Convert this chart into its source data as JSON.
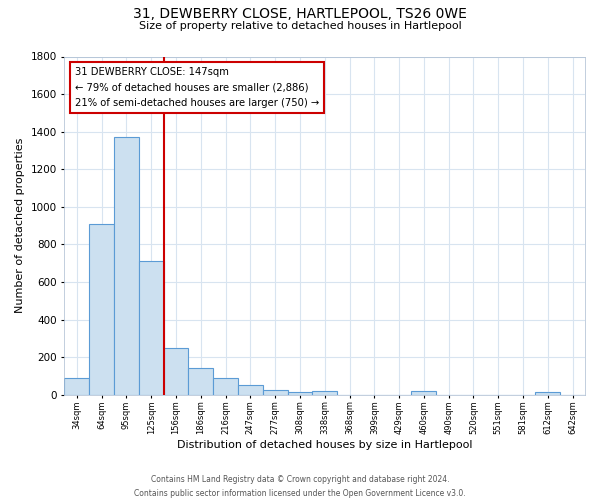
{
  "title": "31, DEWBERRY CLOSE, HARTLEPOOL, TS26 0WE",
  "subtitle": "Size of property relative to detached houses in Hartlepool",
  "xlabel": "Distribution of detached houses by size in Hartlepool",
  "ylabel": "Number of detached properties",
  "bar_labels": [
    "34sqm",
    "64sqm",
    "95sqm",
    "125sqm",
    "156sqm",
    "186sqm",
    "216sqm",
    "247sqm",
    "277sqm",
    "308sqm",
    "338sqm",
    "368sqm",
    "399sqm",
    "429sqm",
    "460sqm",
    "490sqm",
    "520sqm",
    "551sqm",
    "581sqm",
    "612sqm",
    "642sqm"
  ],
  "bar_heights": [
    90,
    910,
    1370,
    710,
    250,
    145,
    90,
    55,
    25,
    15,
    20,
    0,
    0,
    0,
    20,
    0,
    0,
    0,
    0,
    15,
    0
  ],
  "bar_color": "#cce0f0",
  "bar_edge_color": "#5b9bd5",
  "ylim": [
    0,
    1800
  ],
  "yticks": [
    0,
    200,
    400,
    600,
    800,
    1000,
    1200,
    1400,
    1600,
    1800
  ],
  "property_line_color": "#cc0000",
  "annotation_text": "31 DEWBERRY CLOSE: 147sqm\n← 79% of detached houses are smaller (2,886)\n21% of semi-detached houses are larger (750) →",
  "annotation_box_color": "#ffffff",
  "annotation_box_edge_color": "#cc0000",
  "footer_line1": "Contains HM Land Registry data © Crown copyright and database right 2024.",
  "footer_line2": "Contains public sector information licensed under the Open Government Licence v3.0.",
  "background_color": "#ffffff",
  "grid_color": "#d8e4f0"
}
